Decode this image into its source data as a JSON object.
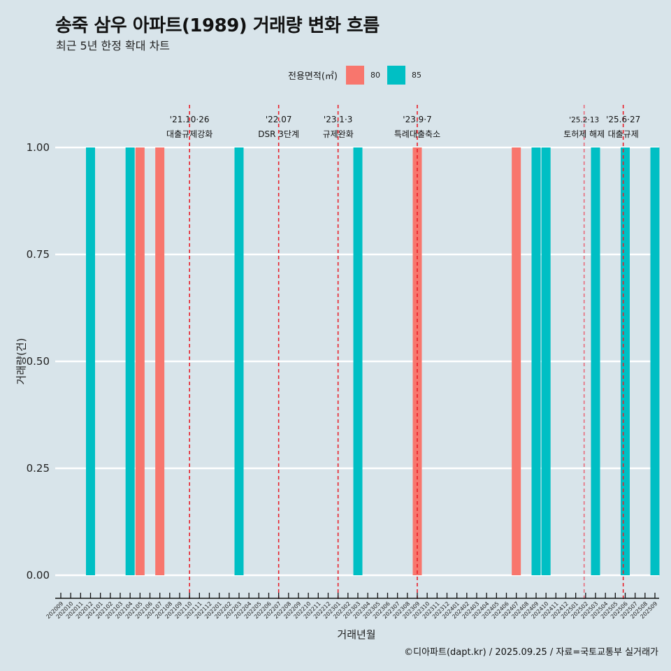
{
  "chart_data": {
    "type": "bar",
    "title": "송죽 삼우 아파트(1989) 거래량 변화 흐름",
    "subtitle": "최근 5년 한정 확대 차트",
    "xlabel": "거래년월",
    "ylabel": "거래량(건)",
    "ylim": [
      0,
      1
    ],
    "y_ticks": [
      "0.00",
      "0.25",
      "0.50",
      "0.75",
      "1.00"
    ],
    "y_tick_values": [
      0,
      0.25,
      0.5,
      0.75,
      1.0
    ],
    "grid": true,
    "legend": {
      "title": "전용면적(㎡)",
      "position": "top",
      "entries": [
        {
          "label": "80",
          "color": "#f8766d"
        },
        {
          "label": "85",
          "color": "#00bfc4"
        }
      ]
    },
    "categories": [
      "202009",
      "202010",
      "202011",
      "202012",
      "202101",
      "202102",
      "202103",
      "202104",
      "202105",
      "202106",
      "202107",
      "202108",
      "202109",
      "202110",
      "202111",
      "202112",
      "202201",
      "202202",
      "202203",
      "202204",
      "202205",
      "202206",
      "202207",
      "202208",
      "202209",
      "202210",
      "202211",
      "202212",
      "202301",
      "202302",
      "202303",
      "202304",
      "202305",
      "202306",
      "202307",
      "202308",
      "202309",
      "202310",
      "202311",
      "202312",
      "202401",
      "202402",
      "202403",
      "202404",
      "202405",
      "202406",
      "202407",
      "202408",
      "202409",
      "202410",
      "202411",
      "202412",
      "202501",
      "202502",
      "202503",
      "202504",
      "202505",
      "202506",
      "202507",
      "202508",
      "202509"
    ],
    "bars": [
      {
        "month": "202012",
        "area": "85",
        "value": 1
      },
      {
        "month": "202104",
        "area": "85",
        "value": 1
      },
      {
        "month": "202105",
        "area": "80",
        "value": 1
      },
      {
        "month": "202107",
        "area": "80",
        "value": 1
      },
      {
        "month": "202203",
        "area": "85",
        "value": 1
      },
      {
        "month": "202303",
        "area": "85",
        "value": 1
      },
      {
        "month": "202309",
        "area": "80",
        "value": 1
      },
      {
        "month": "202407",
        "area": "80",
        "value": 1
      },
      {
        "month": "202409",
        "area": "85",
        "value": 1
      },
      {
        "month": "202410",
        "area": "85",
        "value": 1
      },
      {
        "month": "202503",
        "area": "85",
        "value": 1
      },
      {
        "month": "202506",
        "area": "85",
        "value": 1
      },
      {
        "month": "202509",
        "area": "85",
        "value": 1
      }
    ],
    "annotations": [
      {
        "month": "202110",
        "offset": 0,
        "line1": "'21.10·26",
        "line2": "대출규제강화",
        "color": "#e8202a"
      },
      {
        "month": "202207",
        "offset": 0,
        "line1": "'22.07",
        "line2": "DSR 3단계",
        "color": "#e8202a"
      },
      {
        "month": "202301",
        "offset": 0,
        "line1": "'23.1·3",
        "line2": "규제완화",
        "color": "#e8202a"
      },
      {
        "month": "202309",
        "offset": 0,
        "line1": "'23.9·7",
        "line2": "특례대출축소",
        "color": "#e8202a"
      },
      {
        "month": "202502",
        "offset": -0.15,
        "line1": "'25.2·13",
        "line2": "토허제 해제",
        "color": "#e86a7a"
      },
      {
        "month": "202506",
        "offset": -0.2,
        "line1": "'25.6·27",
        "line2": "대출규제",
        "color": "#e8202a"
      }
    ]
  },
  "caption": "©디아파트(dapt.kr) / 2025.09.25 / 자료=국토교통부 실거래가"
}
